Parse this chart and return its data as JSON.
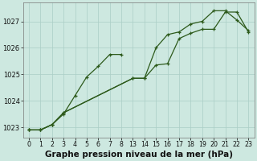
{
  "background_color": "#cde8e0",
  "grid_color": "#aacec6",
  "line_color": "#2d5a1b",
  "marker_color": "#2d5a1b",
  "title": "Graphe pression niveau de la mer (hPa)",
  "yticks": [
    1023,
    1024,
    1025,
    1026,
    1027
  ],
  "ylim": [
    1022.6,
    1027.7
  ],
  "series1_x": [
    0,
    1,
    2,
    3,
    4,
    5,
    6,
    7,
    8
  ],
  "series1_y": [
    1022.9,
    1022.9,
    1023.1,
    1023.5,
    1024.2,
    1024.9,
    1025.3,
    1025.75,
    1025.75
  ],
  "series2_x": [
    0,
    1,
    2,
    3,
    13,
    14,
    15,
    16,
    17,
    18,
    19,
    20,
    21,
    22,
    23
  ],
  "series2_y": [
    1022.9,
    1022.9,
    1023.1,
    1023.55,
    1024.85,
    1024.85,
    1026.0,
    1026.5,
    1026.6,
    1026.9,
    1027.0,
    1027.4,
    1027.4,
    1027.05,
    1026.65
  ],
  "series3_x": [
    0,
    1,
    2,
    3,
    13,
    14,
    15,
    16,
    17,
    18,
    19,
    20,
    21,
    22,
    23
  ],
  "series3_y": [
    1022.9,
    1022.9,
    1023.1,
    1023.55,
    1024.85,
    1024.85,
    1025.35,
    1025.4,
    1026.35,
    1026.55,
    1026.7,
    1026.7,
    1027.35,
    1027.35,
    1026.6
  ],
  "x_values": [
    0,
    1,
    2,
    3,
    4,
    5,
    6,
    7,
    8,
    13,
    14,
    15,
    16,
    17,
    18,
    19,
    20,
    21,
    22,
    23
  ],
  "xtick_labels": [
    "0",
    "1",
    "2",
    "3",
    "4",
    "5",
    "6",
    "7",
    "8",
    "13",
    "14",
    "15",
    "16",
    "17",
    "18",
    "19",
    "20",
    "21",
    "22",
    "23"
  ],
  "title_fontsize": 7.5,
  "tick_fontsize": 6,
  "linewidth": 0.9,
  "markersize": 3.0
}
